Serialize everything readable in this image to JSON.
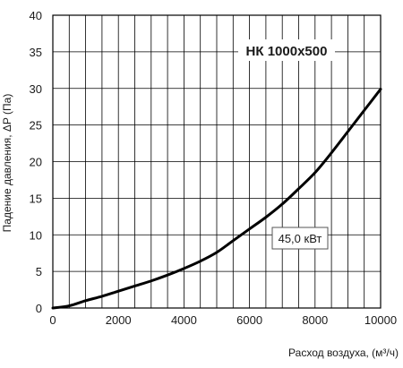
{
  "chart_data": {
    "type": "line",
    "title": "НК 1000х500",
    "xlabel": "Расход воздуха, (м³/ч)",
    "ylabel": "Падение давления, ΔP (Па)",
    "annotation": "45,0  кВт",
    "xlim": [
      0,
      10000
    ],
    "ylim": [
      0,
      40
    ],
    "x_ticks": [
      0,
      2000,
      4000,
      6000,
      8000,
      10000
    ],
    "y_ticks": [
      0,
      5,
      10,
      15,
      20,
      25,
      30,
      35,
      40
    ],
    "x_tick_labels": [
      "0",
      "2000",
      "4000",
      "6000",
      "8000",
      "10000"
    ],
    "y_tick_labels": [
      "0",
      "5",
      "10",
      "15",
      "20",
      "25",
      "30",
      "35",
      "40"
    ],
    "grid": true,
    "series": [
      {
        "color": "#000000",
        "x": [
          0,
          500,
          1000,
          1500,
          2000,
          2500,
          3000,
          3500,
          4000,
          4500,
          5000,
          5500,
          6000,
          6500,
          7000,
          7500,
          8000,
          8500,
          9000,
          9500,
          10000
        ],
        "y": [
          0,
          0.3,
          1.0,
          1.6,
          2.3,
          3.0,
          3.7,
          4.5,
          5.4,
          6.4,
          7.6,
          9.2,
          10.8,
          12.4,
          14.2,
          16.3,
          18.5,
          21.2,
          24.1,
          27.0,
          29.9
        ]
      }
    ]
  }
}
